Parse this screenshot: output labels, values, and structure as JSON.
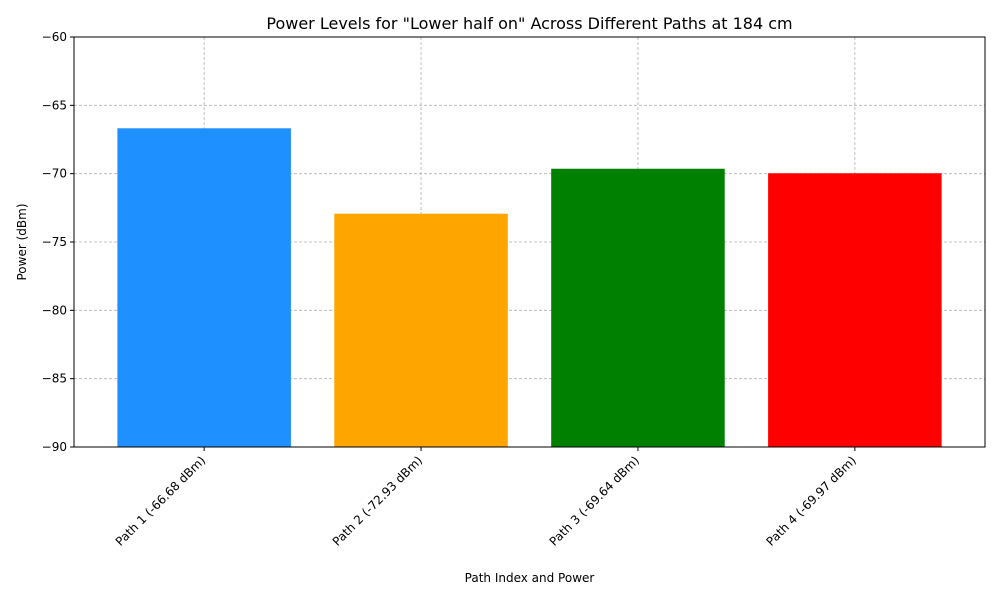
{
  "chart_data": {
    "type": "bar",
    "title": "Power Levels for \"Lower half on\" Across Different Paths at 184 cm",
    "xlabel": "Path Index and Power",
    "ylabel": "Power (dBm)",
    "categories": [
      "Path 1 (-66.68 dBm)",
      "Path 2 (-72.93 dBm)",
      "Path 3 (-69.64 dBm)",
      "Path 4 (-69.97 dBm)"
    ],
    "values": [
      -66.68,
      -72.93,
      -69.64,
      -69.97
    ],
    "colors": [
      "#1e90ff",
      "#ffa500",
      "#008000",
      "#ff0000"
    ],
    "ylim": [
      -90,
      -60
    ],
    "yticks": [
      -90,
      -85,
      -80,
      -75,
      -70,
      -65,
      -60
    ],
    "ytick_labels": [
      "−90",
      "−85",
      "−80",
      "−75",
      "−70",
      "−65",
      "−60"
    ],
    "grid": true
  }
}
